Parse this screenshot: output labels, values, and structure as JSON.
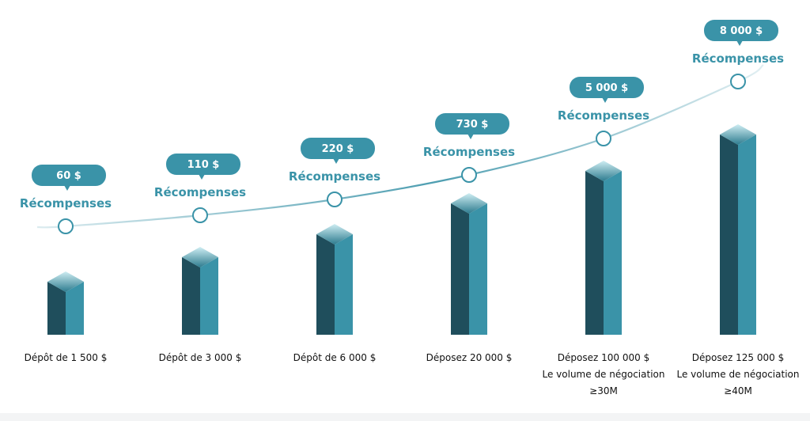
{
  "chart_data": {
    "type": "bar",
    "categories": [
      [
        "Dépôt de 1 500 $"
      ],
      [
        "Dépôt de 3 000 $"
      ],
      [
        "Dépôt de 6 000 $"
      ],
      [
        "Déposez 20 000 $"
      ],
      [
        "Déposez 100 000 $",
        "Le volume de négociation",
        "≥30M"
      ],
      [
        "Déposez 125 000 $",
        "Le volume de négociation",
        "≥40M"
      ]
    ],
    "rewards": [
      "60 $",
      "110 $",
      "220 $",
      "730 $",
      "5 000 $",
      "8 000 $"
    ],
    "reward_label": "Récompenses",
    "values": [
      60,
      110,
      220,
      730,
      5000,
      8000
    ]
  },
  "colors": {
    "bar_front": "#3a93a8",
    "bar_side": "#1f4e5c",
    "bar_top_light": "#c8e8ee",
    "bar_top_dark": "#2e7f92",
    "badge": "#3a93a8",
    "curve": "#3a93a8",
    "footer": "#f3f4f5"
  }
}
